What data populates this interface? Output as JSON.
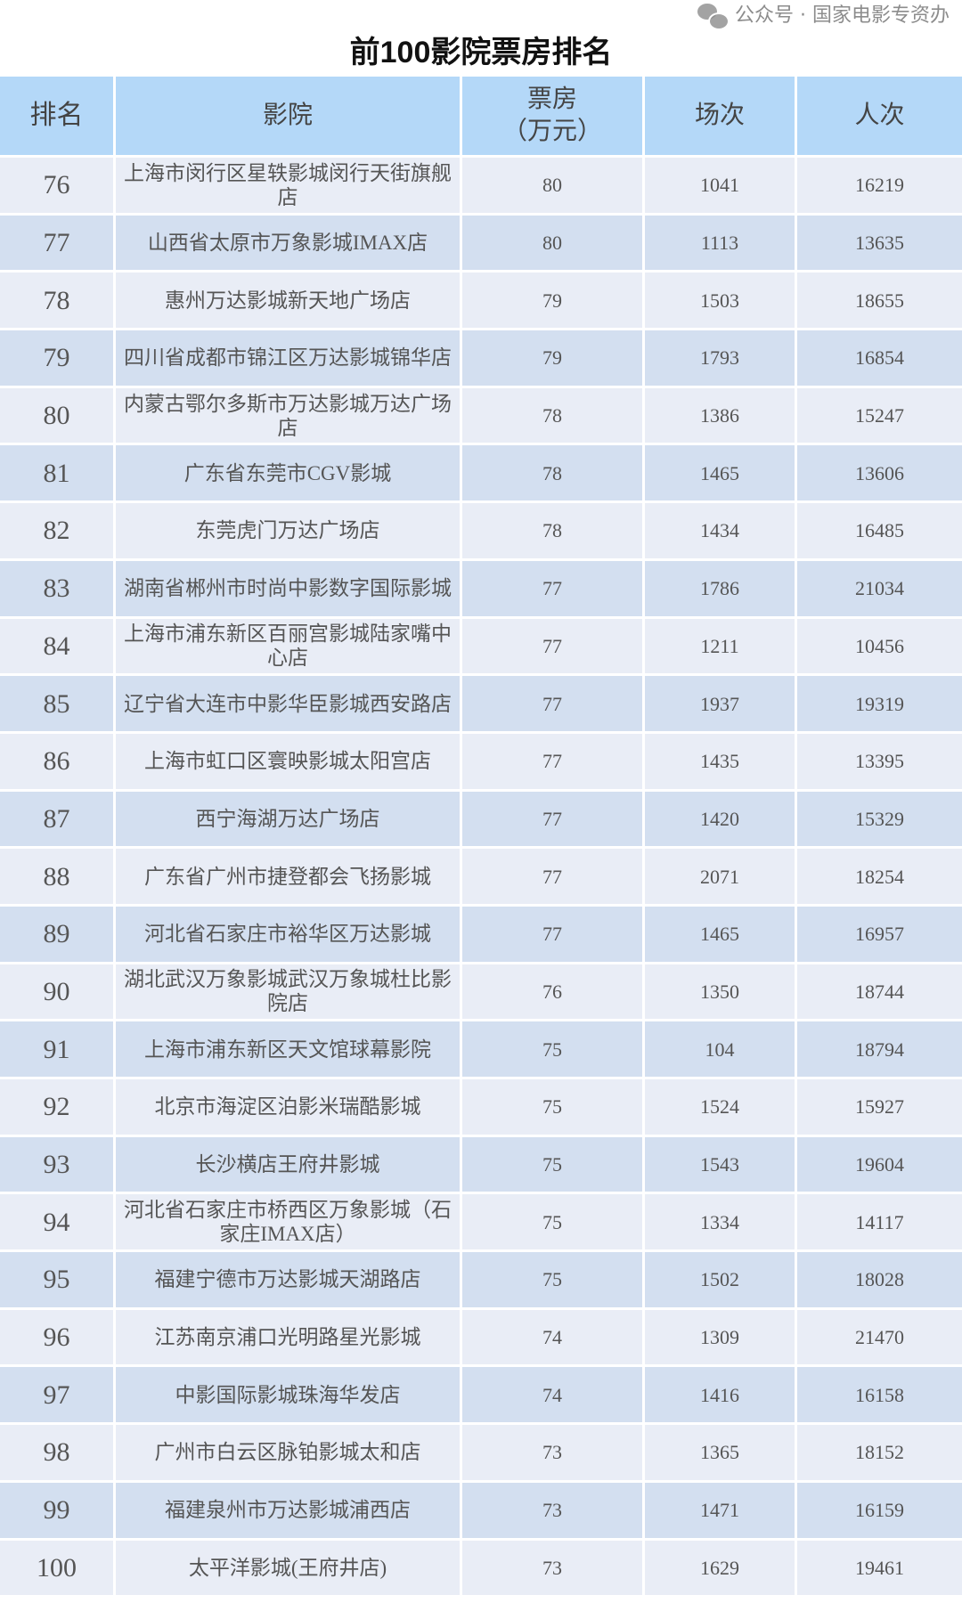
{
  "title": "前100影院票房排名",
  "headers": [
    "排名",
    "影院",
    "票房\n（万元）",
    "场次",
    "人次"
  ],
  "colors": {
    "header_bg": "#b4d8f8",
    "row_light": "#e9edf6",
    "row_dark": "#d3dff0"
  },
  "rows": [
    [
      "76",
      "上海市闵行区星轶影城闵行天街旗舰店",
      "80",
      "1041",
      "16219"
    ],
    [
      "77",
      "山西省太原市万象影城IMAX店",
      "80",
      "1113",
      "13635"
    ],
    [
      "78",
      "惠州万达影城新天地广场店",
      "79",
      "1503",
      "18655"
    ],
    [
      "79",
      "四川省成都市锦江区万达影城锦华店",
      "79",
      "1793",
      "16854"
    ],
    [
      "80",
      "内蒙古鄂尔多斯市万达影城万达广场店",
      "78",
      "1386",
      "15247"
    ],
    [
      "81",
      "广东省东莞市CGV影城",
      "78",
      "1465",
      "13606"
    ],
    [
      "82",
      "东莞虎门万达广场店",
      "78",
      "1434",
      "16485"
    ],
    [
      "83",
      "湖南省郴州市时尚中影数字国际影城",
      "77",
      "1786",
      "21034"
    ],
    [
      "84",
      "上海市浦东新区百丽宫影城陆家嘴中心店",
      "77",
      "1211",
      "10456"
    ],
    [
      "85",
      "辽宁省大连市中影华臣影城西安路店",
      "77",
      "1937",
      "19319"
    ],
    [
      "86",
      "上海市虹口区寰映影城太阳宫店",
      "77",
      "1435",
      "13395"
    ],
    [
      "87",
      "西宁海湖万达广场店",
      "77",
      "1420",
      "15329"
    ],
    [
      "88",
      "广东省广州市捷登都会飞扬影城",
      "77",
      "2071",
      "18254"
    ],
    [
      "89",
      "河北省石家庄市裕华区万达影城",
      "77",
      "1465",
      "16957"
    ],
    [
      "90",
      "湖北武汉万象影城武汉万象城杜比影院店",
      "76",
      "1350",
      "18744"
    ],
    [
      "91",
      "上海市浦东新区天文馆球幕影院",
      "75",
      "104",
      "18794"
    ],
    [
      "92",
      "北京市海淀区泊影米瑞酷影城",
      "75",
      "1524",
      "15927"
    ],
    [
      "93",
      "长沙横店王府井影城",
      "75",
      "1543",
      "19604"
    ],
    [
      "94",
      "河北省石家庄市桥西区万象影城（石家庄IMAX店）",
      "75",
      "1334",
      "14117"
    ],
    [
      "95",
      "福建宁德市万达影城天湖路店",
      "75",
      "1502",
      "18028"
    ],
    [
      "96",
      "江苏南京浦口光明路星光影城",
      "74",
      "1309",
      "21470"
    ],
    [
      "97",
      "中影国际影城珠海华发店",
      "74",
      "1416",
      "16158"
    ],
    [
      "98",
      "广州市白云区脉铂影城太和店",
      "73",
      "1365",
      "18152"
    ],
    [
      "99",
      "福建泉州市万达影城浦西店",
      "73",
      "1471",
      "16159"
    ],
    [
      "100",
      "太平洋影城(王府井店)",
      "73",
      "1629",
      "19461"
    ]
  ],
  "watermark": {
    "icon": "wechat-icon",
    "text": "公众号 · 国家电影专资办"
  }
}
